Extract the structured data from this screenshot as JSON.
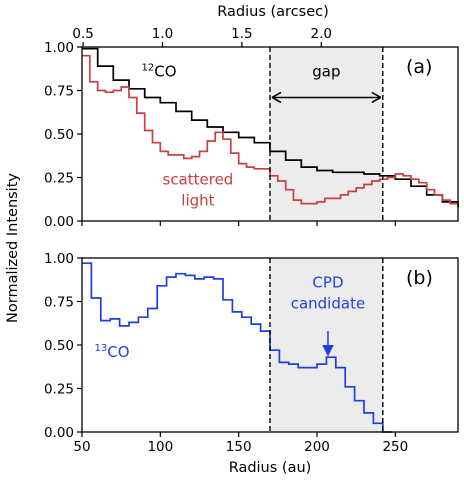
{
  "top_axis": {
    "label": "Radius (arcsec)",
    "ticks": [
      {
        "label": "0.5",
        "au": 50.69
      },
      {
        "label": "1.0",
        "au": 101.37
      },
      {
        "label": "1.5",
        "au": 152.06
      },
      {
        "label": "2.0",
        "au": 202.74
      }
    ]
  },
  "shared_ylabel": "Normalized Intensity",
  "chart_data": [
    {
      "panel": "a",
      "panel_label": "(a)",
      "type": "line",
      "xlim": [
        50,
        290
      ],
      "ylim": [
        0,
        1
      ],
      "xticks": [
        50,
        100,
        150,
        200,
        250
      ],
      "yticks": [
        0,
        0.25,
        0.5,
        0.75,
        1.0
      ],
      "ytick_labels": [
        "0.00",
        "0.25",
        "0.50",
        "0.75",
        "1.00"
      ],
      "gap_region": [
        170,
        242
      ],
      "gap_label": "gap",
      "series": [
        {
          "name": "12CO",
          "label_text": "CO",
          "label_sup": "12",
          "color": "#000000",
          "x": [
            50,
            60,
            70,
            80,
            90,
            100,
            110,
            120,
            130,
            140,
            150,
            160,
            170,
            180,
            190,
            200,
            210,
            220,
            230,
            240,
            250,
            260,
            270,
            280,
            290
          ],
          "y": [
            0.99,
            0.89,
            0.81,
            0.76,
            0.71,
            0.68,
            0.63,
            0.58,
            0.54,
            0.51,
            0.48,
            0.45,
            0.4,
            0.35,
            0.31,
            0.29,
            0.28,
            0.28,
            0.27,
            0.26,
            0.24,
            0.2,
            0.15,
            0.11,
            0.08
          ]
        },
        {
          "name": "scattered light",
          "label_lines": [
            "scattered",
            "light"
          ],
          "color": "#c8413e",
          "x": [
            50,
            55,
            60,
            65,
            70,
            75,
            80,
            85,
            90,
            95,
            100,
            105,
            110,
            115,
            120,
            125,
            130,
            135,
            140,
            145,
            150,
            155,
            160,
            165,
            170,
            175,
            180,
            185,
            190,
            195,
            200,
            205,
            210,
            215,
            220,
            225,
            230,
            235,
            240,
            245,
            250,
            255,
            260,
            265,
            270,
            275,
            280,
            285,
            290
          ],
          "y": [
            0.95,
            0.8,
            0.75,
            0.74,
            0.75,
            0.77,
            0.71,
            0.62,
            0.52,
            0.45,
            0.4,
            0.38,
            0.38,
            0.36,
            0.37,
            0.4,
            0.46,
            0.51,
            0.47,
            0.39,
            0.33,
            0.31,
            0.3,
            0.3,
            0.26,
            0.23,
            0.18,
            0.12,
            0.1,
            0.1,
            0.11,
            0.13,
            0.13,
            0.15,
            0.17,
            0.19,
            0.21,
            0.23,
            0.24,
            0.25,
            0.27,
            0.26,
            0.24,
            0.22,
            0.18,
            0.15,
            0.12,
            0.1,
            0.09
          ]
        }
      ]
    },
    {
      "panel": "b",
      "panel_label": "(b)",
      "type": "line",
      "xlim": [
        50,
        290
      ],
      "ylim": [
        0,
        1
      ],
      "xticks": [
        50,
        100,
        150,
        200,
        250
      ],
      "xtick_labels": [
        "50",
        "100",
        "150",
        "200",
        "250"
      ],
      "xlabel": "Radius (au)",
      "yticks": [
        0,
        0.25,
        0.5,
        0.75,
        1.0
      ],
      "ytick_labels": [
        "0.00",
        "0.25",
        "0.50",
        "0.75",
        "1.00"
      ],
      "gap_region": [
        170,
        242
      ],
      "series": [
        {
          "name": "13CO",
          "label_text": "CO",
          "label_sup": "13",
          "color": "#1f3fe0",
          "x": [
            50,
            56,
            62,
            68,
            74,
            80,
            86,
            92,
            98,
            104,
            110,
            116,
            122,
            128,
            134,
            140,
            146,
            152,
            158,
            164,
            170,
            176,
            182,
            188,
            194,
            200,
            206,
            212,
            218,
            224,
            230,
            236,
            242
          ],
          "y": [
            0.97,
            0.77,
            0.64,
            0.65,
            0.61,
            0.63,
            0.66,
            0.71,
            0.84,
            0.89,
            0.91,
            0.9,
            0.88,
            0.89,
            0.88,
            0.76,
            0.69,
            0.66,
            0.62,
            0.58,
            0.47,
            0.4,
            0.39,
            0.37,
            0.37,
            0.39,
            0.43,
            0.37,
            0.26,
            0.18,
            0.11,
            0.05,
            0.0
          ]
        }
      ],
      "annotation": {
        "lines": [
          "CPD",
          "candidate"
        ],
        "arrow_x": 207,
        "arrow_tip_y": 0.44,
        "arrow_tail_y": 0.58
      }
    }
  ]
}
